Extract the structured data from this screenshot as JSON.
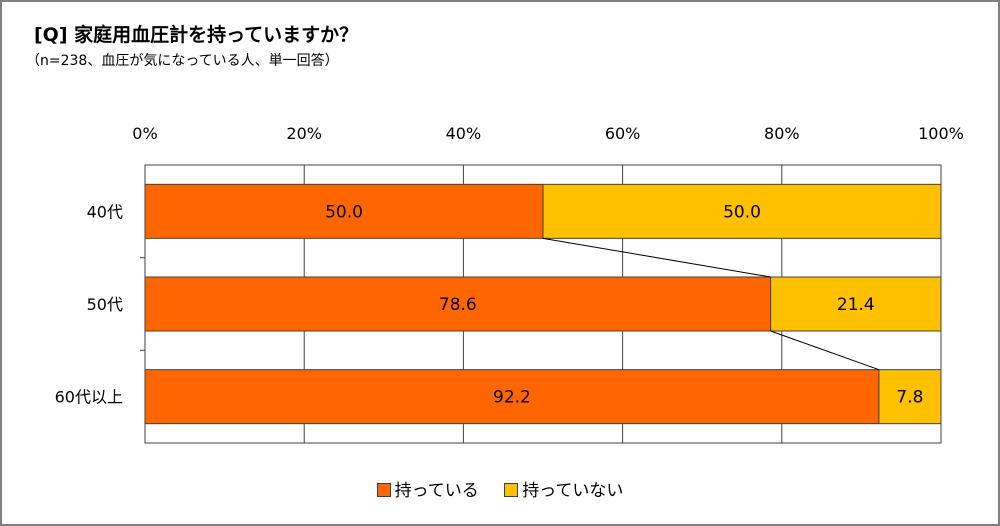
{
  "chart_data": {
    "type": "bar",
    "orientation": "horizontal",
    "stacked": true,
    "percent": true,
    "title": "[Q] 家庭用血圧計を持っていますか？",
    "subtitle": "（n=238、血圧が気になっている人、単一回答）",
    "categories": [
      "40代",
      "50代",
      "60代以上"
    ],
    "series": [
      {
        "name": "持っている",
        "values": [
          50.0,
          78.6,
          92.2
        ],
        "labels": [
          "50.0",
          "78.6",
          "92.2"
        ],
        "color": "#FF6600"
      },
      {
        "name": "持っていない",
        "values": [
          50.0,
          21.4,
          7.8
        ],
        "labels": [
          "50.0",
          "21.4",
          "7.8"
        ],
        "color": "#FFC000"
      }
    ],
    "xlim": [
      0,
      100
    ],
    "xticks": [
      "0%",
      "20%",
      "40%",
      "60%",
      "80%",
      "100%"
    ],
    "grid": true,
    "connector_lines": true,
    "legend_position": "bottom"
  }
}
